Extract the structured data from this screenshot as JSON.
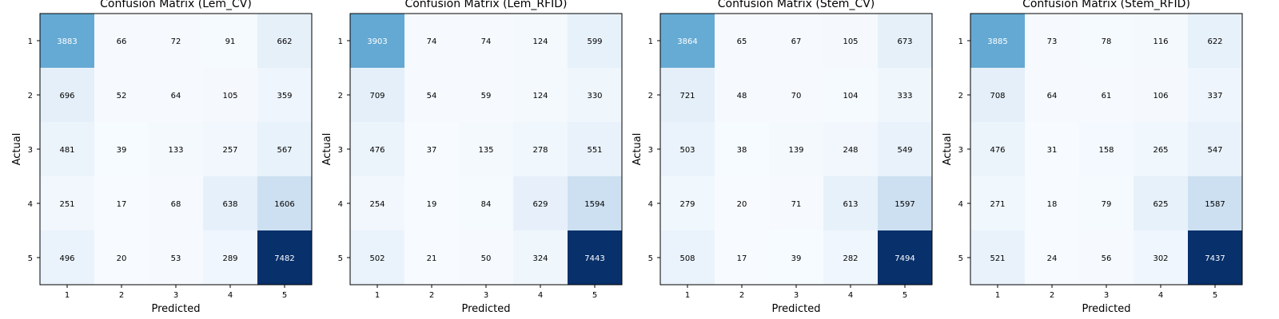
{
  "chart_data": [
    {
      "type": "heatmap",
      "title": "Confusion Matrix (Lem_CV)",
      "xlabel": "Predicted",
      "ylabel": "Actual",
      "x_ticks": [
        "1",
        "2",
        "3",
        "4",
        "5"
      ],
      "y_ticks": [
        "1",
        "2",
        "3",
        "4",
        "5"
      ],
      "colormap": "Blues",
      "values": [
        [
          3883,
          66,
          72,
          91,
          662
        ],
        [
          696,
          52,
          64,
          105,
          359
        ],
        [
          481,
          39,
          133,
          257,
          567
        ],
        [
          251,
          17,
          68,
          638,
          1606
        ],
        [
          496,
          20,
          53,
          289,
          7482
        ]
      ]
    },
    {
      "type": "heatmap",
      "title": "Confusion Matrix (Lem_RFID)",
      "xlabel": "Predicted",
      "ylabel": "Actual",
      "x_ticks": [
        "1",
        "2",
        "3",
        "4",
        "5"
      ],
      "y_ticks": [
        "1",
        "2",
        "3",
        "4",
        "5"
      ],
      "colormap": "Blues",
      "values": [
        [
          3903,
          74,
          74,
          124,
          599
        ],
        [
          709,
          54,
          59,
          124,
          330
        ],
        [
          476,
          37,
          135,
          278,
          551
        ],
        [
          254,
          19,
          84,
          629,
          1594
        ],
        [
          502,
          21,
          50,
          324,
          7443
        ]
      ]
    },
    {
      "type": "heatmap",
      "title": "Confusion Matrix (Stem_CV)",
      "xlabel": "Predicted",
      "ylabel": "Actual",
      "x_ticks": [
        "1",
        "2",
        "3",
        "4",
        "5"
      ],
      "y_ticks": [
        "1",
        "2",
        "3",
        "4",
        "5"
      ],
      "colormap": "Blues",
      "values": [
        [
          3864,
          65,
          67,
          105,
          673
        ],
        [
          721,
          48,
          70,
          104,
          333
        ],
        [
          503,
          38,
          139,
          248,
          549
        ],
        [
          279,
          20,
          71,
          613,
          1597
        ],
        [
          508,
          17,
          39,
          282,
          7494
        ]
      ]
    },
    {
      "type": "heatmap",
      "title": "Confusion Matrix (Stem_RFID)",
      "xlabel": "Predicted",
      "ylabel": "Actual",
      "x_ticks": [
        "1",
        "2",
        "3",
        "4",
        "5"
      ],
      "y_ticks": [
        "1",
        "2",
        "3",
        "4",
        "5"
      ],
      "colormap": "Blues",
      "values": [
        [
          3885,
          73,
          78,
          116,
          622
        ],
        [
          708,
          64,
          61,
          106,
          337
        ],
        [
          476,
          31,
          158,
          265,
          547
        ],
        [
          271,
          18,
          79,
          625,
          1587
        ],
        [
          521,
          24,
          56,
          302,
          7437
        ]
      ]
    }
  ]
}
